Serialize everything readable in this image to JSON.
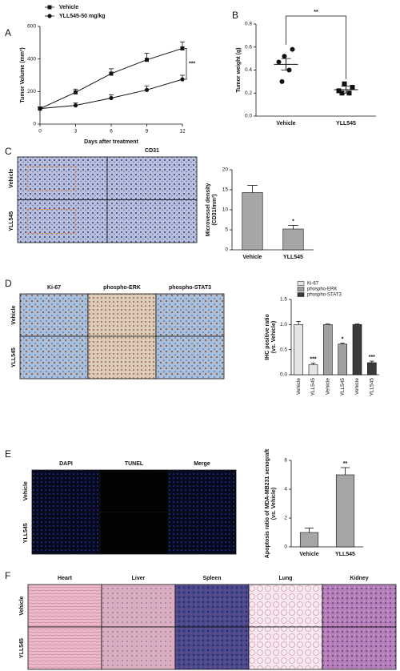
{
  "panel_labels": [
    "A",
    "B",
    "C",
    "D",
    "E",
    "F"
  ],
  "chart_data": [
    {
      "type": "line",
      "xlabel": "Days after treatment",
      "ylabel": [
        "Tumor Volume (mm³)"
      ],
      "x": [
        0,
        3,
        6,
        9,
        12
      ],
      "xlim": [
        0,
        12
      ],
      "xticks": [
        0,
        3,
        6,
        9,
        12
      ],
      "ylim": [
        0,
        600
      ],
      "yticks": [
        0,
        200,
        400,
        600
      ],
      "series": [
        {
          "name": "Vehicle",
          "marker": "square",
          "color": "#111111",
          "values": [
            95,
            195,
            310,
            395,
            465
          ],
          "errors": [
            10,
            20,
            30,
            40,
            40
          ]
        },
        {
          "name": "YLL545-50 mg/kg",
          "marker": "circle",
          "color": "#111111",
          "values": [
            95,
            115,
            160,
            210,
            275
          ],
          "errors": [
            10,
            15,
            20,
            25,
            25
          ]
        }
      ],
      "significance": "***"
    },
    {
      "type": "strip",
      "ylabel": [
        "Tumor weight (g)"
      ],
      "categories": [
        "Vehicle",
        "YLL545"
      ],
      "ylim": [
        0,
        0.8
      ],
      "yticks": [
        {
          "value": 0,
          "label": "0.0"
        },
        {
          "value": 0.2,
          "label": "0.2"
        },
        {
          "value": 0.4,
          "label": "0.4"
        },
        {
          "value": 0.6,
          "label": "0.6"
        },
        {
          "value": 0.8,
          "label": "0.8"
        }
      ],
      "groups": [
        {
          "marker": "circle",
          "values": [
            0.52,
            0.58,
            0.47,
            0.4,
            0.3
          ],
          "mean": 0.45,
          "error": 0.05
        },
        {
          "marker": "square",
          "values": [
            0.28,
            0.25,
            0.22,
            0.2,
            0.2
          ],
          "mean": 0.23,
          "error": 0.03
        }
      ],
      "significance": "**"
    },
    {
      "type": "bar",
      "ylabel": [
        "Microvessel density",
        "(CD31/mm²)"
      ],
      "categories": [
        "Vehicle",
        "YLL545"
      ],
      "values": [
        14.3,
        5.2
      ],
      "errors": [
        1.8,
        0.9
      ],
      "color": "#a6a6a6",
      "ylim": [
        0,
        20
      ],
      "yticks": [
        0,
        5,
        10,
        15,
        20
      ],
      "significance": [
        null,
        "*"
      ]
    },
    {
      "type": "bar",
      "ylabel": [
        "IHC positive ratio",
        "(vs. Vehicle)"
      ],
      "categories": [
        "Vehicle",
        "YLL545",
        "Vehicle",
        "YLL545",
        "Vehicle",
        "YLL545"
      ],
      "ylim": [
        0,
        1.5
      ],
      "yticks": [
        {
          "value": 0,
          "label": "0.0"
        },
        {
          "value": 0.5,
          "label": "0.5"
        },
        {
          "value": 1,
          "label": "1.0"
        },
        {
          "value": 1.5,
          "label": "1.5"
        }
      ],
      "series": [
        {
          "name": "Ki-67",
          "color": "#e4e4e4",
          "values": [
            1.0,
            0.2,
            null,
            null,
            null,
            null
          ],
          "errors": [
            0.06,
            0.03,
            null,
            null,
            null,
            null
          ],
          "significance": [
            null,
            "***",
            null,
            null,
            null,
            null
          ]
        },
        {
          "name": "phospho-ERK",
          "color": "#a0a0a0",
          "values": [
            null,
            null,
            1.0,
            0.61,
            null,
            null
          ],
          "errors": [
            null,
            null,
            0.01,
            0.02,
            null,
            null
          ],
          "significance": [
            null,
            null,
            null,
            "*",
            null,
            null
          ]
        },
        {
          "name": "phospho-STAT3",
          "color": "#3a3a3a",
          "values": [
            null,
            null,
            null,
            null,
            1.0,
            0.24
          ],
          "errors": [
            null,
            null,
            null,
            null,
            0.01,
            0.03
          ],
          "significance": [
            null,
            null,
            null,
            null,
            null,
            "***"
          ]
        }
      ]
    },
    {
      "type": "bar",
      "ylabel": [
        "Apoptosis ratio of MDA-MB231 xenograft",
        "(vs. Vehicle)"
      ],
      "categories": [
        "Vehicle",
        "YLL545"
      ],
      "values": [
        1.0,
        5.0
      ],
      "errors": [
        0.3,
        0.5
      ],
      "color": "#a6a6a6",
      "ylim": [
        0,
        6
      ],
      "yticks": [
        0,
        2,
        4,
        6
      ],
      "significance": [
        null,
        "**"
      ]
    }
  ],
  "micrographs": {
    "C": {
      "columns": [
        "CD31"
      ],
      "rows": [
        "Vehicle",
        "YLL545"
      ]
    },
    "D": {
      "columns": [
        "Ki-67",
        "phospho-ERK",
        "phospho-STAT3"
      ],
      "rows": [
        "Vehicle",
        "YLL545"
      ]
    },
    "E": {
      "columns": [
        "DAPI",
        "TUNEL",
        "Merge"
      ],
      "rows": [
        "Vehicle",
        "YLL545"
      ]
    },
    "F": {
      "columns": [
        "Heart",
        "Liver",
        "Spleen",
        "Lung",
        "Kidney"
      ],
      "rows": [
        "Vehicle",
        "YLL545"
      ]
    }
  }
}
